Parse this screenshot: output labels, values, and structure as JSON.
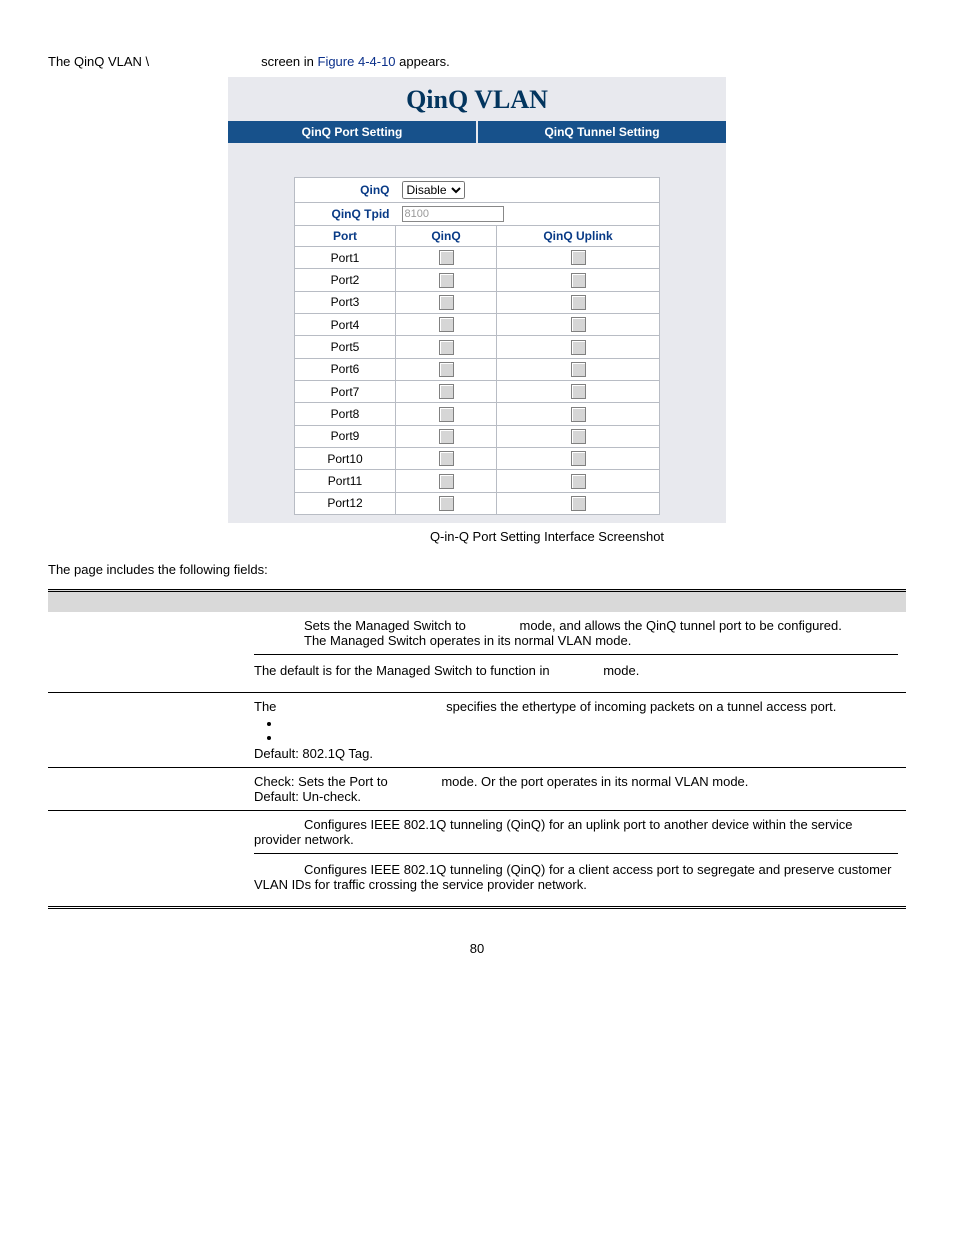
{
  "intro": {
    "prefix": "The QinQ VLAN \\",
    "mid": "screen in ",
    "figref": "Figure 4-4-10",
    "suffix": " appears."
  },
  "panel": {
    "title": "QinQ VLAN",
    "tabs": {
      "left": "QinQ Port Setting",
      "right": "QinQ Tunnel Setting"
    },
    "qinq_label": "QinQ",
    "qinq_value": "Disable",
    "tpid_label": "QinQ Tpid",
    "tpid_value": "8100",
    "cols": {
      "port": "Port",
      "qinq": "QinQ",
      "uplink": "QinQ Uplink"
    },
    "ports": [
      "Port1",
      "Port2",
      "Port3",
      "Port4",
      "Port5",
      "Port6",
      "Port7",
      "Port8",
      "Port9",
      "Port10",
      "Port11",
      "Port12"
    ]
  },
  "caption": "Q-in-Q Port Setting Interface Screenshot",
  "fields_intro": "The page includes the following fields:",
  "rows": {
    "qinq": {
      "enable_part1": "Sets the Managed Switch to",
      "enable_part2": "mode, and allows the QinQ tunnel port to be configured.",
      "disable_line": "The Managed Switch operates in its normal VLAN mode.",
      "default_part1": "The default is for the Managed Switch to function in",
      "default_part2": "mode."
    },
    "tpid": {
      "line1_a": "The",
      "line1_b": "specifies the ethertype of incoming packets on a tunnel access port.",
      "default": "Default: 802.1Q Tag."
    },
    "qinq_port": {
      "line_a": "Check: Sets the Port to",
      "line_b": "mode. Or the port operates in its normal VLAN mode.",
      "default": "Default: Un-check."
    },
    "uplink": {
      "a": "Configures IEEE 802.1Q tunneling (QinQ) for an uplink port to another device within the service provider network.",
      "b": "Configures IEEE 802.1Q tunneling (QinQ) for a client access port to segregate and preserve customer VLAN IDs for traffic crossing the service provider network."
    }
  },
  "page_number": "80"
}
